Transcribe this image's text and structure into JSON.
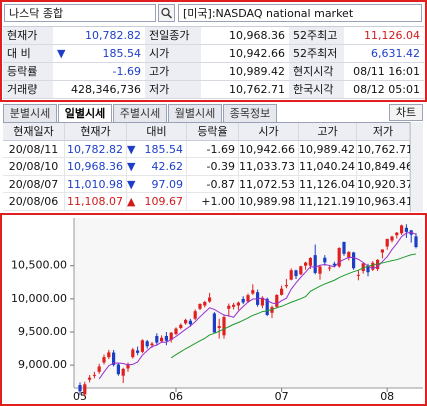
{
  "search": {
    "query": "나스닥 종합",
    "market": "[미국]:NASDAQ national market"
  },
  "quote": [
    [
      {
        "label": "현재가",
        "value": "10,782.82",
        "color": "#1d3fc7"
      },
      {
        "label": "전일종가",
        "value": "10,968.36"
      },
      {
        "label": "52주최고",
        "value": "11,126.04",
        "color": "#d01c1c"
      }
    ],
    [
      {
        "label": "대 비",
        "arrow": "▼",
        "value": "185.54",
        "color": "#1d3fc7"
      },
      {
        "label": "시가",
        "value": "10,942.66"
      },
      {
        "label": "52주최저",
        "value": "6,631.42",
        "color": "#1d3fc7"
      }
    ],
    [
      {
        "label": "등락률",
        "value": "-1.69",
        "color": "#1d3fc7"
      },
      {
        "label": "고가",
        "value": "10,989.42"
      },
      {
        "label": "현지시각",
        "value": "08/11 16:01"
      }
    ],
    [
      {
        "label": "거래량",
        "value": "428,346,736"
      },
      {
        "label": "저가",
        "value": "10,762.71"
      },
      {
        "label": "한국시각",
        "value": "08/12 05:01"
      }
    ]
  ],
  "tabs": [
    "분별시세",
    "일별시세",
    "주별시세",
    "월별시세",
    "종목정보"
  ],
  "active_tab": 1,
  "chart_button": "차트",
  "table": {
    "header": [
      "현재일자",
      "현재가",
      "대비",
      "등락율",
      "시가",
      "고가",
      "저가"
    ],
    "rows": [
      {
        "color": "#1d3fc7",
        "cells": [
          "20/08/11",
          "10,782.82",
          "▼",
          "185.54",
          "-1.69",
          "10,942.66",
          "10,989.42",
          "10,762.71"
        ]
      },
      {
        "color": "#1d3fc7",
        "cells": [
          "20/08/10",
          "10,968.36",
          "▼",
          "42.62",
          "-0.39",
          "11,033.73",
          "11,040.24",
          "10,849.46"
        ]
      },
      {
        "color": "#1d3fc7",
        "cells": [
          "20/08/07",
          "11,010.98",
          "▼",
          "97.09",
          "-0.87",
          "11,072.53",
          "11,126.04",
          "10,920.37"
        ]
      },
      {
        "color": "#d01c1c",
        "cells": [
          "20/08/06",
          "11,108.07",
          "▲",
          "109.67",
          "+1.00",
          "10,989.98",
          "11,121.19",
          "10,963.41"
        ]
      }
    ]
  },
  "chart_data": {
    "type": "candlestick",
    "categories": [
      "05",
      null,
      null,
      null,
      null,
      null,
      null,
      null,
      null,
      null,
      null,
      null,
      null,
      null,
      null,
      null,
      null,
      null,
      null,
      null,
      "06",
      null,
      null,
      null,
      null,
      null,
      null,
      null,
      null,
      null,
      null,
      null,
      null,
      null,
      null,
      null,
      null,
      null,
      null,
      null,
      null,
      null,
      "07",
      null,
      null,
      null,
      null,
      null,
      null,
      null,
      null,
      null,
      null,
      null,
      null,
      null,
      null,
      null,
      null,
      null,
      null,
      null,
      null,
      null,
      "08",
      null,
      null,
      null,
      null,
      null,
      null
    ],
    "open": [
      8700,
      8560,
      8780,
      8840,
      8900,
      9040,
      9120,
      9190,
      9010,
      8840,
      8950,
      9120,
      9220,
      9200,
      9360,
      9300,
      9440,
      9360,
      9440,
      9380,
      9470,
      9560,
      9630,
      9670,
      9700,
      9850,
      9900,
      9960,
      9780,
      9560,
      9450,
      9850,
      9880,
      9900,
      10000,
      9960,
      10080,
      10100,
      9900,
      10000,
      9790,
      9880,
      10060,
      10190,
      10290,
      10430,
      10370,
      10500,
      10500,
      10660,
      10380,
      10620,
      10470,
      10530,
      10490,
      10860,
      10620,
      10700,
      10350,
      10420,
      10500,
      10440,
      10450,
      10700,
      10790,
      10880,
      10960,
      10989.98,
      11072.53,
      11033.73,
      10942.66
    ],
    "high": [
      8740,
      8750,
      8850,
      8900,
      9020,
      9160,
      9230,
      9230,
      9040,
      8960,
      9040,
      9260,
      9280,
      9390,
      9380,
      9350,
      9480,
      9450,
      9500,
      9500,
      9570,
      9630,
      9700,
      9700,
      9840,
      9930,
      9970,
      10090,
      9800,
      9700,
      9760,
      9930,
      9940,
      9960,
      10040,
      10080,
      10220,
      10140,
      10040,
      10020,
      9900,
      10070,
      10200,
      10300,
      10460,
      10440,
      10500,
      10560,
      10630,
      10820,
      10510,
      10660,
      10500,
      10560,
      10780,
      10860,
      10720,
      10710,
      10430,
      10540,
      10530,
      10570,
      10600,
      10750,
      10910,
      10950,
      11010,
      11121.19,
      11126.04,
      11040.24,
      10989.42
    ],
    "low": [
      8550,
      8520,
      8740,
      8800,
      8870,
      9010,
      9090,
      8980,
      8840,
      8730,
      8900,
      9100,
      9150,
      9180,
      9250,
      9260,
      9300,
      9340,
      9300,
      9340,
      9450,
      9540,
      9610,
      9580,
      9680,
      9830,
      9870,
      9940,
      9490,
      9400,
      9400,
      9730,
      9840,
      9830,
      9920,
      9940,
      10060,
      9880,
      9860,
      9740,
      9710,
      9860,
      10050,
      10160,
      10280,
      10300,
      10360,
      10440,
      10450,
      10370,
      10290,
      10500,
      10420,
      10480,
      10470,
      10650,
      10580,
      10440,
      10280,
      10380,
      10340,
      10420,
      10420,
      10610,
      10740,
      10850,
      10910,
      10963.41,
      10920.37,
      10849.46,
      10762.71
    ],
    "close": [
      8605,
      8710,
      8810,
      8854,
      8980,
      9121,
      9192,
      9002,
      8863,
      8943,
      9014,
      9235,
      9185,
      9375,
      9285,
      9325,
      9340,
      9412,
      9368,
      9489,
      9552,
      9608,
      9683,
      9616,
      9814,
      9924,
      9953,
      10020,
      9492,
      9589,
      9726,
      9895,
      9910,
      9943,
      9946,
      10056,
      10131,
      9909,
      10017,
      9757,
      9874,
      10059,
      10154,
      10208,
      10433,
      10344,
      10492,
      10548,
      10617,
      10391,
      10488,
      10550,
      10473,
      10503,
      10767,
      10680,
      10706,
      10462,
      10363,
      10536,
      10402,
      10543,
      10588,
      10745,
      10903,
      10941,
      10999,
      11108.07,
      11010.98,
      10968.36,
      10782.82
    ],
    "ma_lines": [
      {
        "color": "#9a2fd0",
        "values": [
          null,
          null,
          null,
          null,
          8792,
          8895,
          8991,
          9030,
          9032,
          9024,
          9003,
          9011,
          9048,
          9150,
          9219,
          9281,
          9302,
          9347,
          9346,
          9387,
          9432,
          9486,
          9540,
          9590,
          9655,
          9729,
          9798,
          9865,
          9841,
          9796,
          9756,
          9744,
          9722,
          9813,
          9884,
          9950,
          9997,
          9997,
          10012,
          9974,
          9938,
          9923,
          9972,
          10010,
          10146,
          10240,
          10326,
          10405,
          10487,
          10478,
          10507,
          10519,
          10504,
          10481,
          10556,
          10595,
          10626,
          10624,
          10596,
          10549,
          10494,
          10461,
          10486,
          10563,
          10636,
          10744,
          10835,
          10939,
          10992,
          11005,
          10974
        ]
      },
      {
        "color": "#1f9a2a",
        "values": [
          null,
          null,
          null,
          null,
          null,
          null,
          null,
          null,
          null,
          null,
          null,
          null,
          null,
          null,
          null,
          null,
          null,
          null,
          null,
          9110,
          9158,
          9203,
          9247,
          9285,
          9327,
          9367,
          9405,
          9456,
          9480,
          9511,
          9546,
          9579,
          9615,
          9643,
          9676,
          9712,
          9751,
          9776,
          9808,
          9821,
          9840,
          9865,
          9888,
          9918,
          9949,
          9975,
          10003,
          10034,
          10114,
          10154,
          10192,
          10225,
          10253,
          10281,
          10322,
          10353,
          10382,
          10410,
          10433,
          10467,
          10493,
          10510,
          10527,
          10542,
          10559,
          10577,
          10591,
          10616,
          10642,
          10666,
          10678
        ]
      }
    ],
    "up_color": "#e0201f",
    "down_color": "#1a3fc4",
    "ylim": [
      8700,
      11160
    ],
    "yticks": [
      {
        "value": 9000,
        "label": "9,000.00"
      },
      {
        "value": 9500,
        "label": "9,500.00"
      },
      {
        "value": 10000,
        "label": "10,000.00"
      },
      {
        "value": 10500,
        "label": "10,500.00"
      }
    ]
  }
}
